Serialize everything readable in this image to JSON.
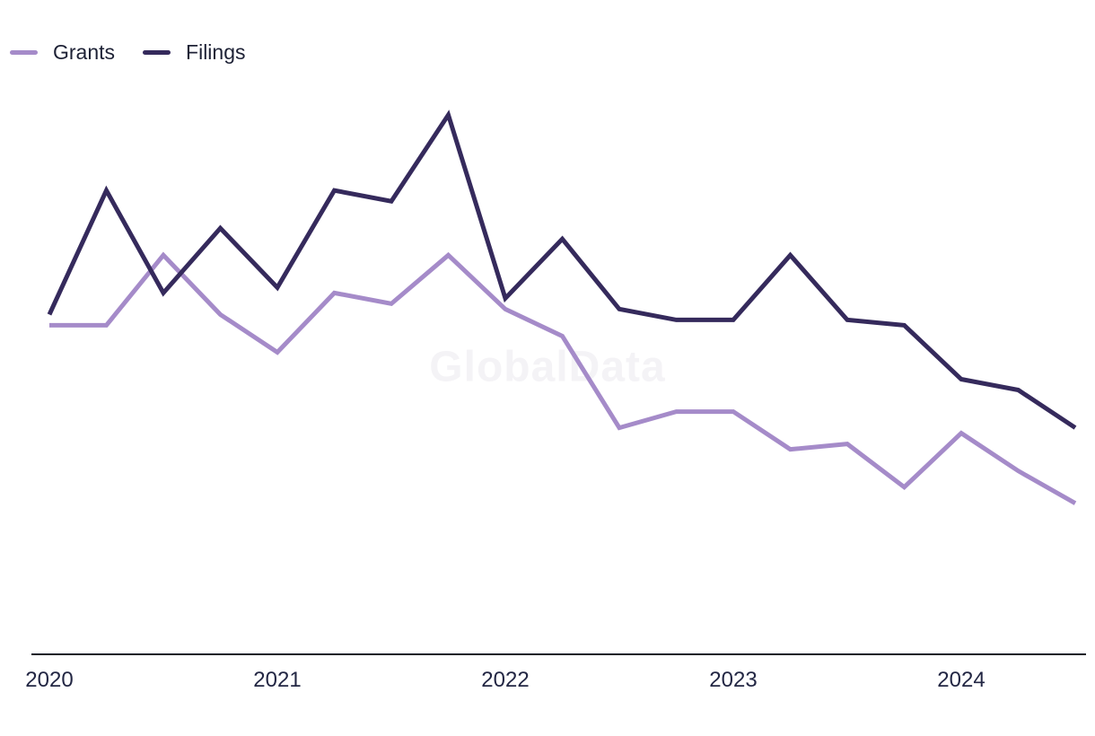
{
  "watermark": "GlobalData",
  "colors": {
    "grants_line": "#a58bc9",
    "filings_line": "#352a5c",
    "axis_line": "#121728",
    "tick_text": "#232744",
    "legend_text": "#1d2135",
    "watermark_text": "#f4f3f6",
    "background": "#ffffff"
  },
  "legend": {
    "items": [
      {
        "id": "grants",
        "label": "Grants",
        "color": "#a58bc9"
      },
      {
        "id": "filings",
        "label": "Filings",
        "color": "#352a5c"
      }
    ]
  },
  "chart_data": {
    "type": "line",
    "title": "",
    "xlabel": "",
    "ylabel": "",
    "x": [
      "2020 Q1",
      "2020 Q2",
      "2020 Q3",
      "2020 Q4",
      "2021 Q1",
      "2021 Q2",
      "2021 Q3",
      "2021 Q4",
      "2022 Q1",
      "2022 Q2",
      "2022 Q3",
      "2022 Q4",
      "2023 Q1",
      "2023 Q2",
      "2023 Q3",
      "2023 Q4",
      "2024 Q1",
      "2024 Q2",
      "2024 Q3"
    ],
    "series": [
      {
        "name": "Grants",
        "color": "#a58bc9",
        "values": [
          61,
          61,
          74,
          63,
          56,
          67,
          65,
          74,
          64,
          59,
          42,
          45,
          45,
          38,
          39,
          31,
          41,
          34,
          28
        ]
      },
      {
        "name": "Filings",
        "color": "#352a5c",
        "values": [
          63,
          86,
          67,
          79,
          68,
          86,
          84,
          100,
          66,
          77,
          64,
          62,
          62,
          74,
          62,
          61,
          51,
          49,
          42
        ]
      }
    ],
    "ylim": [
      0,
      105
    ],
    "y_axis_visible": false,
    "grid": false,
    "legend_position": "top-left",
    "x_tick_labels": [
      "2020",
      "2021",
      "2022",
      "2023",
      "2024"
    ],
    "x_tick_indices": [
      0,
      4,
      8,
      12,
      16
    ]
  }
}
